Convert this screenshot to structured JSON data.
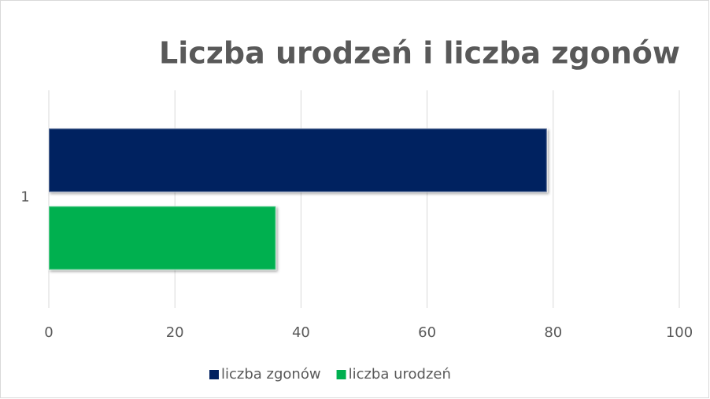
{
  "chart_data": {
    "type": "bar",
    "orientation": "horizontal",
    "title": "Liczba urodzeń i liczba zgonów",
    "categories": [
      "1"
    ],
    "series": [
      {
        "name": "liczba zgonów",
        "color": "#002060",
        "values": [
          79
        ]
      },
      {
        "name": "liczba urodzeń",
        "color": "#00b050",
        "values": [
          36
        ]
      }
    ],
    "xlim": [
      0,
      100
    ],
    "xticks": [
      0,
      20,
      40,
      60,
      80,
      100
    ],
    "grid": true,
    "legend": "bottom"
  }
}
